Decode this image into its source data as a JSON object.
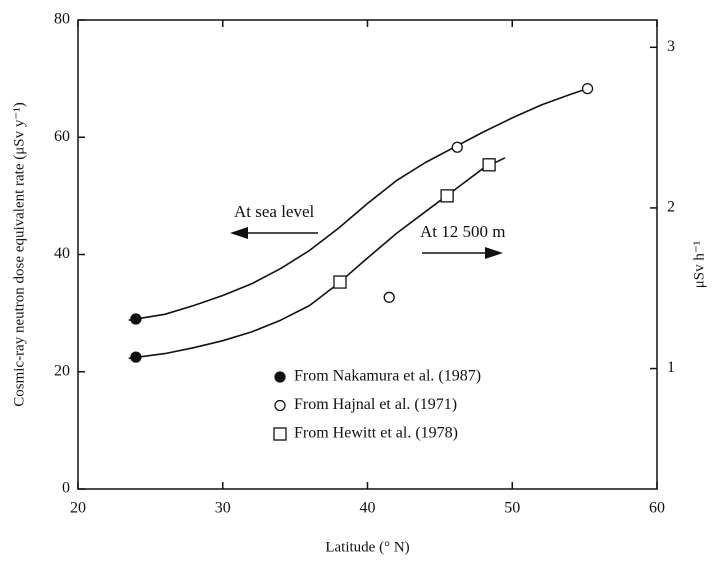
{
  "chart_data": {
    "type": "scatter",
    "x_label": "Latitude (° N)",
    "y_label": "Cosmic-ray neutron dose equivalent rate (μSv y⁻¹)",
    "y2_label": "μSv h⁻¹",
    "xlim": [
      20,
      60
    ],
    "xticks": [
      20,
      30,
      40,
      50,
      60
    ],
    "ylim": [
      0,
      80
    ],
    "yticks": [
      0,
      20,
      40,
      60,
      80
    ],
    "y2lim": [
      0.25,
      3.17
    ],
    "y2ticks": [
      1,
      2,
      3
    ],
    "color": "#111111",
    "annotations": [
      "At sea level",
      "At 12 500 m"
    ],
    "series": [
      {
        "name": "From Nakamura et al. (1987)",
        "marker": "filled-circle",
        "x": [
          24,
          24
        ],
        "values": [
          29,
          22.5
        ]
      },
      {
        "name": "From Hajnal et al. (1971)",
        "marker": "open-circle",
        "x": [
          46.2,
          55.2,
          41.5
        ],
        "values": [
          58.3,
          68.3,
          32.7
        ]
      },
      {
        "name": "From Hewitt et al. (1978)",
        "marker": "open-square",
        "x": [
          38.1,
          45.5,
          48.4
        ],
        "values": [
          35.3,
          50,
          55.3
        ]
      }
    ],
    "curves": [
      {
        "x": [
          23.5,
          26,
          28,
          30,
          32,
          34,
          36,
          38,
          40,
          42,
          44,
          46,
          48,
          50,
          52,
          54,
          55.2
        ],
        "values": [
          28.8,
          29.8,
          31.3,
          33,
          35,
          37.6,
          40.7,
          44.5,
          48.7,
          52.6,
          55.7,
          58.3,
          60.9,
          63.3,
          65.5,
          67.3,
          68.3
        ]
      },
      {
        "x": [
          23.5,
          26,
          28,
          30,
          32,
          34,
          36,
          38,
          40,
          42,
          44,
          46,
          48,
          49.5
        ],
        "values": [
          22.3,
          23.1,
          24.1,
          25.3,
          26.8,
          28.8,
          31.3,
          35.1,
          39.4,
          43.6,
          47.3,
          51,
          54.7,
          56.5
        ]
      }
    ]
  }
}
